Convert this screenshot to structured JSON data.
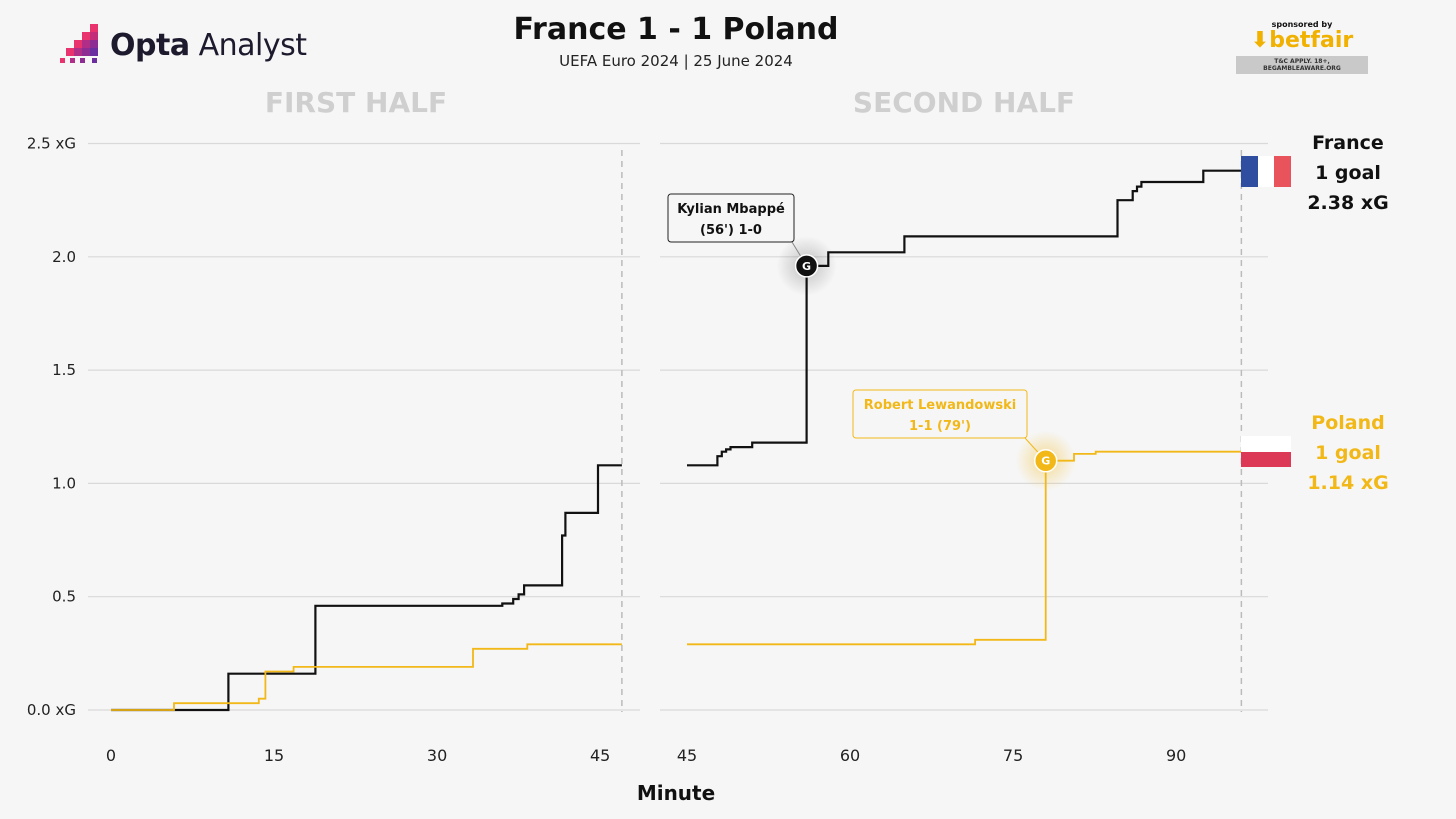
{
  "header": {
    "title": "France 1 - 1 Poland",
    "subtitle": "UEFA Euro 2024 | 25 June 2024",
    "logo_name": "Opta",
    "logo_suffix": "Analyst",
    "sponsor_label": "sponsored by",
    "sponsor_name": "betfair",
    "sponsor_disclaimer": "T&C APPLY. 18+, BEGAMBLEAWARE.ORG"
  },
  "colors": {
    "france": "#111111",
    "poland": "#f2b818",
    "grid": "#d9d9d9",
    "panel_title": "#cfcfcf",
    "background": "#f6f6f6"
  },
  "chart_data": {
    "type": "line",
    "xlabel": "Minute",
    "yticks": [
      0.0,
      0.5,
      1.0,
      1.5,
      2.0,
      2.5
    ],
    "ytick_labels": [
      "0.0 xG",
      "0.5",
      "1.0",
      "1.5",
      "2.0",
      "2.5 xG"
    ],
    "ylim": [
      0,
      2.5
    ],
    "panels": [
      {
        "title": "FIRST HALF",
        "xlim": [
          0,
          49
        ],
        "xticks": [
          0,
          15,
          30,
          45
        ],
        "end_minute": 47
      },
      {
        "title": "SECOND HALF",
        "xlim": [
          45,
          98
        ],
        "xticks": [
          45,
          60,
          75,
          90
        ],
        "end_minute": 96
      }
    ],
    "series": [
      {
        "name": "France",
        "summary_goals": "1 goal",
        "summary_xg": "2.38 xG",
        "first_half": [
          [
            0,
            0
          ],
          [
            5.8,
            0
          ],
          [
            10.8,
            0.16
          ],
          [
            18.8,
            0.46
          ],
          [
            36,
            0.47
          ],
          [
            37,
            0.49
          ],
          [
            37.5,
            0.51
          ],
          [
            38,
            0.55
          ],
          [
            41.5,
            0.77
          ],
          [
            41.8,
            0.87
          ],
          [
            44.8,
            1.08
          ],
          [
            47,
            1.08
          ]
        ],
        "second_half": [
          [
            45,
            1.08
          ],
          [
            47.8,
            1.12
          ],
          [
            48.2,
            1.14
          ],
          [
            48.6,
            1.15
          ],
          [
            49,
            1.16
          ],
          [
            51,
            1.18
          ],
          [
            56,
            1.96
          ],
          [
            58,
            2.02
          ],
          [
            65,
            2.09
          ],
          [
            84.6,
            2.25
          ],
          [
            86,
            2.29
          ],
          [
            86.4,
            2.31
          ],
          [
            86.8,
            2.33
          ],
          [
            92.5,
            2.38
          ],
          [
            96,
            2.38
          ]
        ]
      },
      {
        "name": "Poland",
        "summary_goals": "1 goal",
        "summary_xg": "1.14 xG",
        "first_half": [
          [
            0,
            0
          ],
          [
            5.8,
            0.03
          ],
          [
            13.6,
            0.05
          ],
          [
            14.2,
            0.17
          ],
          [
            16.8,
            0.19
          ],
          [
            33.3,
            0.27
          ],
          [
            38.3,
            0.29
          ],
          [
            47,
            0.29
          ]
        ],
        "second_half": [
          [
            45,
            0.29
          ],
          [
            71.5,
            0.31
          ],
          [
            78,
            1.1
          ],
          [
            80.6,
            1.13
          ],
          [
            82.6,
            1.14
          ],
          [
            96,
            1.14
          ]
        ]
      }
    ],
    "annotations": [
      {
        "series": "France",
        "minute": 56,
        "xg": 1.96,
        "marker": "G",
        "label_line1": "Kylian Mbappé",
        "label_line2": "(56') 1-0"
      },
      {
        "series": "Poland",
        "minute": 78,
        "xg": 1.1,
        "marker": "G",
        "label_line1": "Robert Lewandowski",
        "label_line2": "1-1 (79')"
      }
    ]
  }
}
